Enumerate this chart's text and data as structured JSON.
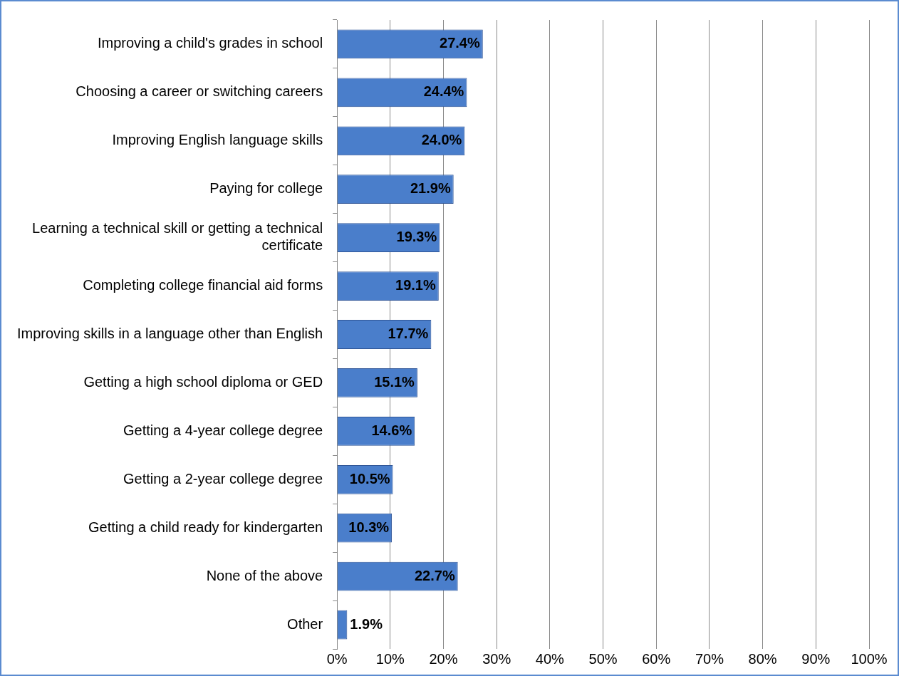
{
  "chart_data": {
    "type": "bar",
    "orientation": "horizontal",
    "categories": [
      "Improving a child's grades in school",
      "Choosing a career or switching careers",
      "Improving English language skills",
      "Paying for college",
      "Learning a technical skill or getting a technical certificate",
      "Completing college financial aid forms",
      "Improving skills in a language other than English",
      "Getting a high school diploma or GED",
      "Getting a 4-year college degree",
      "Getting a 2-year college degree",
      "Getting a child ready for kindergarten",
      "None of the above",
      "Other"
    ],
    "values": [
      27.4,
      24.4,
      24.0,
      21.9,
      19.3,
      19.1,
      17.7,
      15.1,
      14.6,
      10.5,
      10.3,
      22.7,
      1.9
    ],
    "value_labels": [
      "27.4%",
      "24.4%",
      "24.0%",
      "21.9%",
      "19.3%",
      "19.1%",
      "17.7%",
      "15.1%",
      "14.6%",
      "10.5%",
      "10.3%",
      "22.7%",
      "1.9%"
    ],
    "color": "#4a7ecb",
    "xlim": [
      0,
      100
    ],
    "xticks": [
      {
        "value": 0,
        "label": "0%"
      },
      {
        "value": 10,
        "label": "10%"
      },
      {
        "value": 20,
        "label": "20%"
      },
      {
        "value": 30,
        "label": "30%"
      },
      {
        "value": 40,
        "label": "40%"
      },
      {
        "value": 50,
        "label": "50%"
      },
      {
        "value": 60,
        "label": "60%"
      },
      {
        "value": 70,
        "label": "70%"
      },
      {
        "value": 80,
        "label": "80%"
      },
      {
        "value": 90,
        "label": "90%"
      },
      {
        "value": 100,
        "label": "100%"
      }
    ],
    "grid": "x"
  }
}
